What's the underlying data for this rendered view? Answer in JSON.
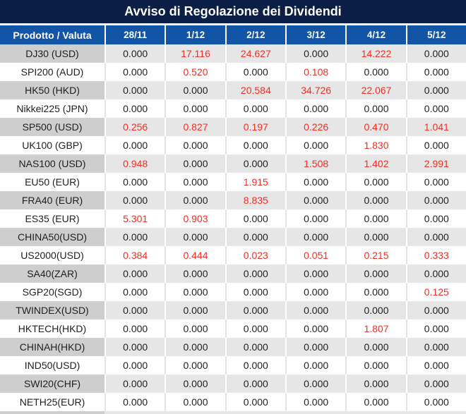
{
  "title": "Avviso di Regolazione dei Dividendi",
  "table": {
    "columns": [
      "Prodotto / Valuta",
      "28/11",
      "1/12",
      "2/12",
      "3/12",
      "4/12",
      "5/12"
    ],
    "rows": [
      {
        "product": "DJ30 (USD)",
        "values": [
          "0.000",
          "17.116",
          "24.627",
          "0.000",
          "14.222",
          "0.000"
        ]
      },
      {
        "product": "SPI200 (AUD)",
        "values": [
          "0.000",
          "0.520",
          "0.000",
          "0.108",
          "0.000",
          "0.000"
        ]
      },
      {
        "product": "HK50 (HKD)",
        "values": [
          "0.000",
          "0.000",
          "20.584",
          "34.726",
          "22.067",
          "0.000"
        ]
      },
      {
        "product": "Nikkei225 (JPN)",
        "values": [
          "0.000",
          "0.000",
          "0.000",
          "0.000",
          "0.000",
          "0.000"
        ]
      },
      {
        "product": "SP500 (USD)",
        "values": [
          "0.256",
          "0.827",
          "0.197",
          "0.226",
          "0.470",
          "1.041"
        ]
      },
      {
        "product": "UK100 (GBP)",
        "values": [
          "0.000",
          "0.000",
          "0.000",
          "0.000",
          "1.830",
          "0.000"
        ]
      },
      {
        "product": "NAS100 (USD)",
        "values": [
          "0.948",
          "0.000",
          "0.000",
          "1.508",
          "1.402",
          "2.991"
        ]
      },
      {
        "product": "EU50 (EUR)",
        "values": [
          "0.000",
          "0.000",
          "1.915",
          "0.000",
          "0.000",
          "0.000"
        ]
      },
      {
        "product": "FRA40 (EUR)",
        "values": [
          "0.000",
          "0.000",
          "8.835",
          "0.000",
          "0.000",
          "0.000"
        ]
      },
      {
        "product": "ES35 (EUR)",
        "values": [
          "5.301",
          "0.903",
          "0.000",
          "0.000",
          "0.000",
          "0.000"
        ]
      },
      {
        "product": "CHINA50(USD)",
        "values": [
          "0.000",
          "0.000",
          "0.000",
          "0.000",
          "0.000",
          "0.000"
        ]
      },
      {
        "product": "US2000(USD)",
        "values": [
          "0.384",
          "0.444",
          "0.023",
          "0.051",
          "0.215",
          "0.333"
        ]
      },
      {
        "product": "SA40(ZAR)",
        "values": [
          "0.000",
          "0.000",
          "0.000",
          "0.000",
          "0.000",
          "0.000"
        ]
      },
      {
        "product": "SGP20(SGD)",
        "values": [
          "0.000",
          "0.000",
          "0.000",
          "0.000",
          "0.000",
          "0.125"
        ]
      },
      {
        "product": "TWINDEX(USD)",
        "values": [
          "0.000",
          "0.000",
          "0.000",
          "0.000",
          "0.000",
          "0.000"
        ]
      },
      {
        "product": "HKTECH(HKD)",
        "values": [
          "0.000",
          "0.000",
          "0.000",
          "0.000",
          "1.807",
          "0.000"
        ]
      },
      {
        "product": "CHINAH(HKD)",
        "values": [
          "0.000",
          "0.000",
          "0.000",
          "0.000",
          "0.000",
          "0.000"
        ]
      },
      {
        "product": "IND50(USD)",
        "values": [
          "0.000",
          "0.000",
          "0.000",
          "0.000",
          "0.000",
          "0.000"
        ]
      },
      {
        "product": "SWI20(CHF)",
        "values": [
          "0.000",
          "0.000",
          "0.000",
          "0.000",
          "0.000",
          "0.000"
        ]
      },
      {
        "product": "NETH25(EUR)",
        "values": [
          "0.000",
          "0.000",
          "0.000",
          "0.000",
          "0.000",
          "0.000"
        ]
      }
    ],
    "highlight_rule": "non-zero values shown in red"
  },
  "colors": {
    "title_bg": "#0a1e46",
    "header_bg": "#1254a6",
    "row_alt_product_bg": "#cecece",
    "row_alt_value_bg": "#e6e6e6",
    "row_bg": "#ffffff",
    "zero_text": "#1f1f1f",
    "dividend_text": "#ee3124"
  }
}
